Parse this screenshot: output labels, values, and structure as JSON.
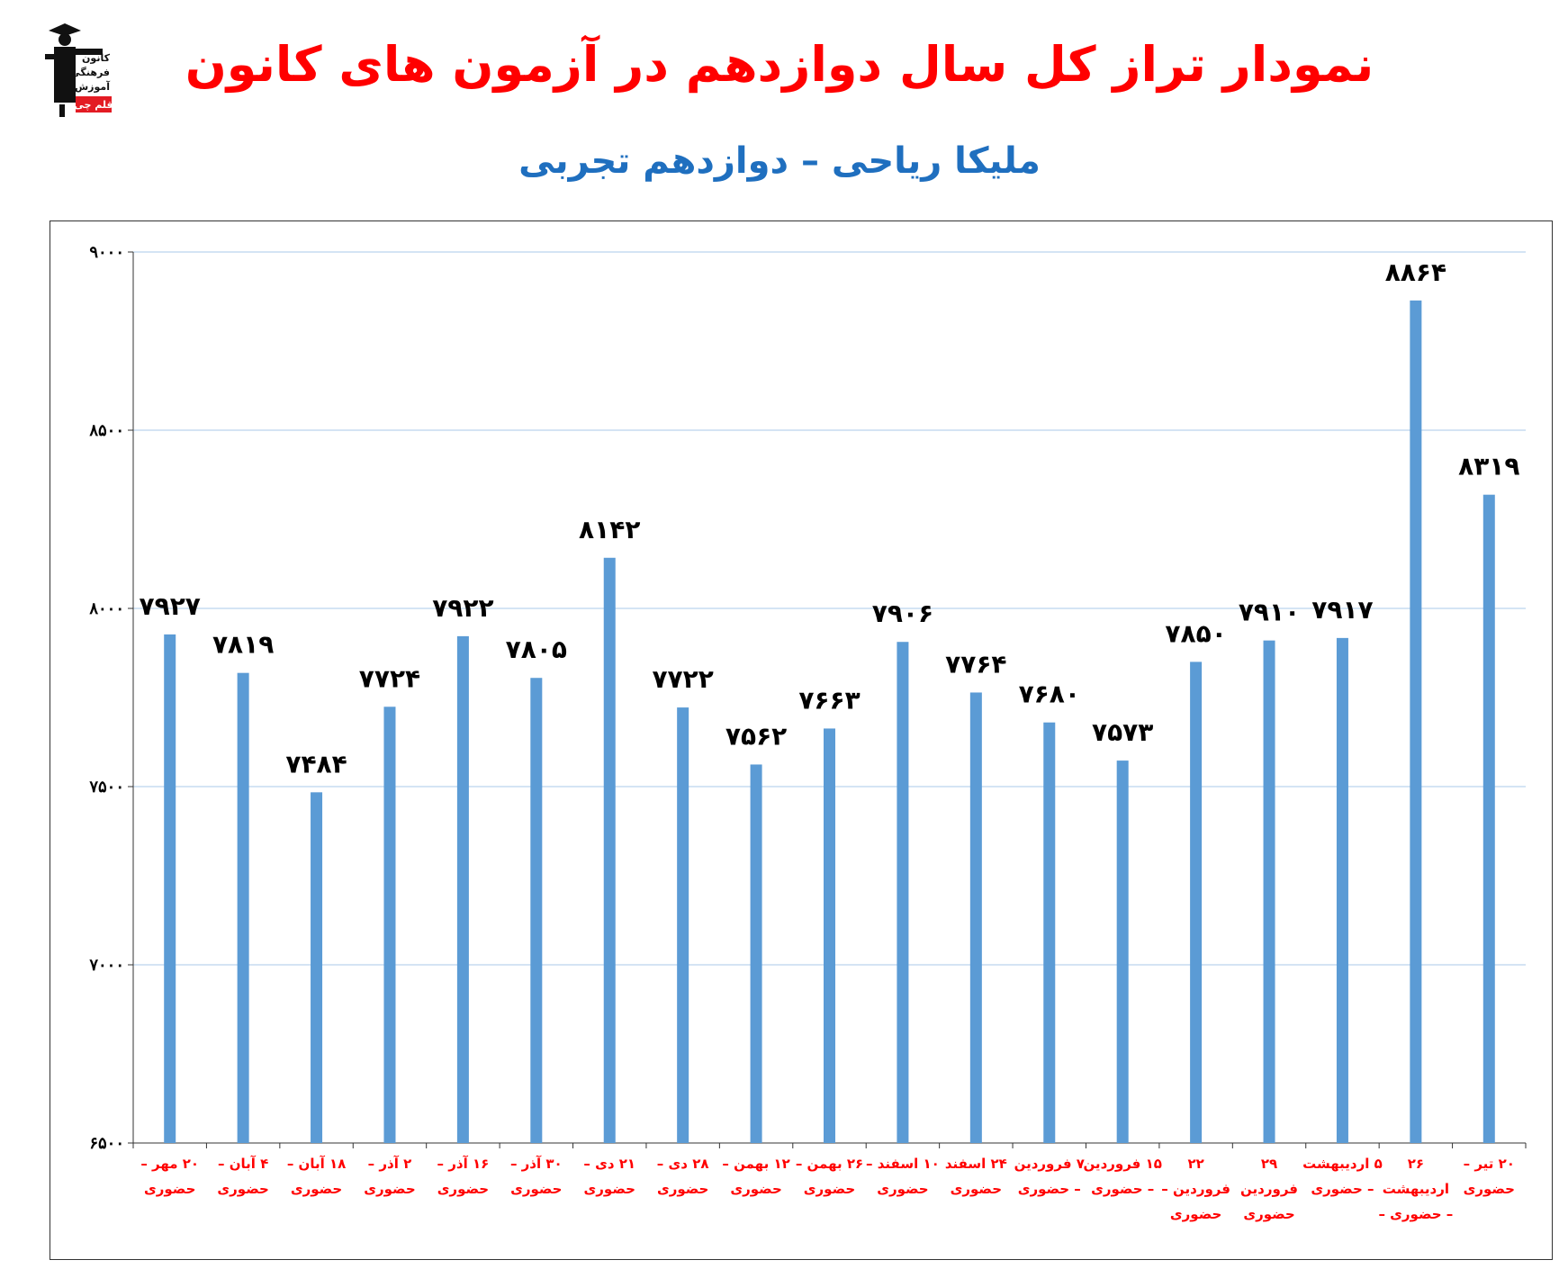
{
  "header": {
    "title": "نمودار تراز کل سال دوازدهم در آزمون های کانون",
    "subtitle": "ملیکا ریاحی – دوازدهم تجربی",
    "title_color": "#ff0000",
    "subtitle_color": "#1f6fbf"
  },
  "logo": {
    "lines": [
      "کانون",
      "فرهنگی",
      "آموزش",
      "قلم چی"
    ],
    "accent": "#e31b23"
  },
  "chart_data": {
    "type": "bar",
    "ylim": [
      6500,
      9000
    ],
    "yticks": [
      6500,
      7000,
      7500,
      8000,
      8500,
      9000
    ],
    "ytick_labels": [
      "۶۵۰۰",
      "۷۰۰۰",
      "۷۵۰۰",
      "۸۰۰۰",
      "۸۵۰۰",
      "۹۰۰۰"
    ],
    "grid": true,
    "bar_color": "#5b9bd5",
    "grid_color": "#a9c9e8",
    "xlabel_color": "#ff0000",
    "categories": [
      [
        "۲۰ مهر –",
        "حضوری"
      ],
      [
        "۴ آبان –",
        "حضوری"
      ],
      [
        "۱۸ آبان –",
        "حضوری"
      ],
      [
        "۲ آذر –",
        "حضوری"
      ],
      [
        "۱۶ آذر –",
        "حضوری"
      ],
      [
        "۳۰ آذر –",
        "حضوری"
      ],
      [
        "۲۱ دی –",
        "حضوری"
      ],
      [
        "۲۸ دی –",
        "حضوری"
      ],
      [
        "۱۲ بهمن –",
        "حضوری"
      ],
      [
        "۲۶ بهمن –",
        "حضوری"
      ],
      [
        "۱۰ اسفند –",
        "حضوری"
      ],
      [
        "۲۴ اسفند",
        "حضوری"
      ],
      [
        "۷ فروردین",
        "– حضوری"
      ],
      [
        "۱۵ فروردین",
        "– حضوری"
      ],
      [
        "۲۲",
        "فروردین –",
        "حضوری"
      ],
      [
        "۲۹",
        "فروردین",
        "حضوری"
      ],
      [
        "۵ اردیبهشت",
        "– حضوری"
      ],
      [
        "۲۶",
        "اردیبهشت",
        "– حضوری –"
      ],
      [
        "۲۰ تیر –",
        "حضوری"
      ]
    ],
    "values": [
      7927,
      7819,
      7484,
      7724,
      7922,
      7805,
      8142,
      7722,
      7562,
      7663,
      7906,
      7764,
      7680,
      7573,
      7850,
      7910,
      7917,
      8864,
      8319
    ],
    "value_labels": [
      "۷۹۲۷",
      "۷۸۱۹",
      "۷۴۸۴",
      "۷۷۲۴",
      "۷۹۲۲",
      "۷۸۰۵",
      "۸۱۴۲",
      "۷۷۲۲",
      "۷۵۶۲",
      "۷۶۶۳",
      "۷۹۰۶",
      "۷۷۶۴",
      "۷۶۸۰",
      "۷۵۷۳",
      "۷۸۵۰",
      "۷۹۱۰",
      "۷۹۱۷",
      "۸۸۶۴",
      "۸۳۱۹"
    ]
  }
}
